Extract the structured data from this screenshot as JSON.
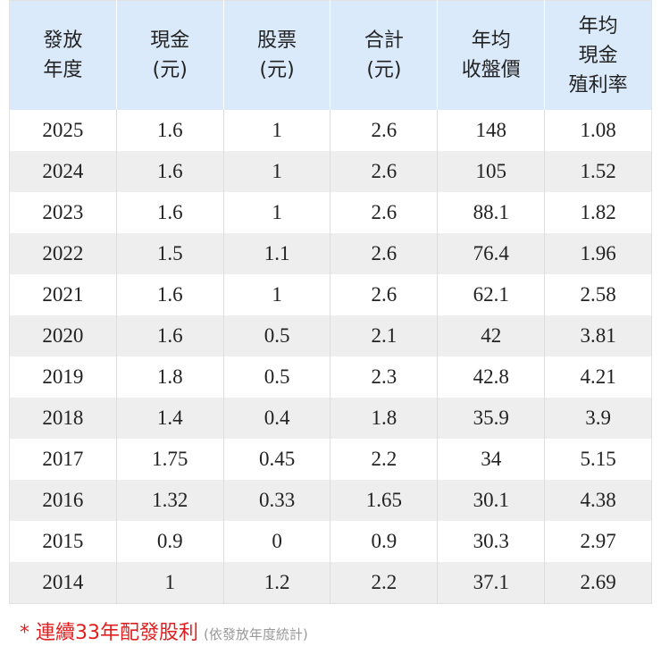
{
  "table": {
    "header": [
      [
        "發放",
        "年度"
      ],
      [
        "現金",
        "(元)"
      ],
      [
        "股票",
        "(元)"
      ],
      [
        "合計",
        "(元)"
      ],
      [
        "年均",
        "收盤價"
      ],
      [
        "年均",
        "現金",
        "殖利率"
      ]
    ],
    "rows": [
      [
        2025,
        1.6,
        1,
        2.6,
        148,
        1.08
      ],
      [
        2024,
        1.6,
        1,
        2.6,
        105,
        1.52
      ],
      [
        2023,
        1.6,
        1,
        2.6,
        88.1,
        1.82
      ],
      [
        2022,
        1.5,
        1.1,
        2.6,
        76.4,
        1.96
      ],
      [
        2021,
        1.6,
        1,
        2.6,
        62.1,
        2.58
      ],
      [
        2020,
        1.6,
        0.5,
        2.1,
        42,
        3.81
      ],
      [
        2019,
        1.8,
        0.5,
        2.3,
        42.8,
        4.21
      ],
      [
        2018,
        1.4,
        0.4,
        1.8,
        35.9,
        3.9
      ],
      [
        2017,
        1.75,
        0.45,
        2.2,
        34,
        5.15
      ],
      [
        2016,
        1.32,
        0.33,
        1.65,
        30.1,
        4.38
      ],
      [
        2015,
        0.9,
        0,
        0.9,
        30.3,
        2.97
      ],
      [
        2014,
        1,
        1.2,
        2.2,
        37.1,
        2.69
      ]
    ]
  },
  "footnote": {
    "main": "* 連續33年配發股利",
    "note": "(依發放年度統計)"
  }
}
